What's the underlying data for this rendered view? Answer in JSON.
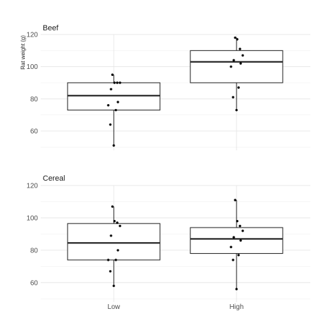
{
  "chart_data": {
    "type": "boxplot",
    "ylabel": "Rat weight (g)",
    "xlabel": "",
    "categories": [
      "Low",
      "High"
    ],
    "grid": true,
    "facets": [
      {
        "title": "Beef",
        "ylim": [
          48,
          120
        ],
        "yticks": [
          60,
          80,
          100,
          120
        ],
        "groups": [
          {
            "category": "Low",
            "box": {
              "min": 51,
              "q1": 73,
              "median": 82,
              "q3": 90,
              "max": 95
            },
            "points": [
              95,
              90,
              90,
              90,
              86,
              78,
              76,
              73,
              64,
              51
            ]
          },
          {
            "category": "High",
            "box": {
              "min": 73,
              "q1": 90,
              "median": 103,
              "q3": 110,
              "max": 118
            },
            "points": [
              118,
              117,
              111,
              107,
              104,
              102,
              100,
              87,
              81,
              73
            ]
          }
        ]
      },
      {
        "title": "Cereal",
        "ylim": [
          48,
          120
        ],
        "yticks": [
          60,
          80,
          100,
          120
        ],
        "groups": [
          {
            "category": "Low",
            "box": {
              "min": 58,
              "q1": 74,
              "median": 84.5,
              "q3": 96.5,
              "max": 107
            },
            "points": [
              107,
              98,
              97,
              95,
              89,
              80,
              74,
              74,
              67,
              58
            ]
          },
          {
            "category": "High",
            "box": {
              "min": 56,
              "q1": 78,
              "median": 87,
              "q3": 94,
              "max": 111
            },
            "points": [
              111,
              98,
              95,
              92,
              88,
              86,
              82,
              77,
              74,
              56
            ]
          }
        ]
      }
    ]
  }
}
